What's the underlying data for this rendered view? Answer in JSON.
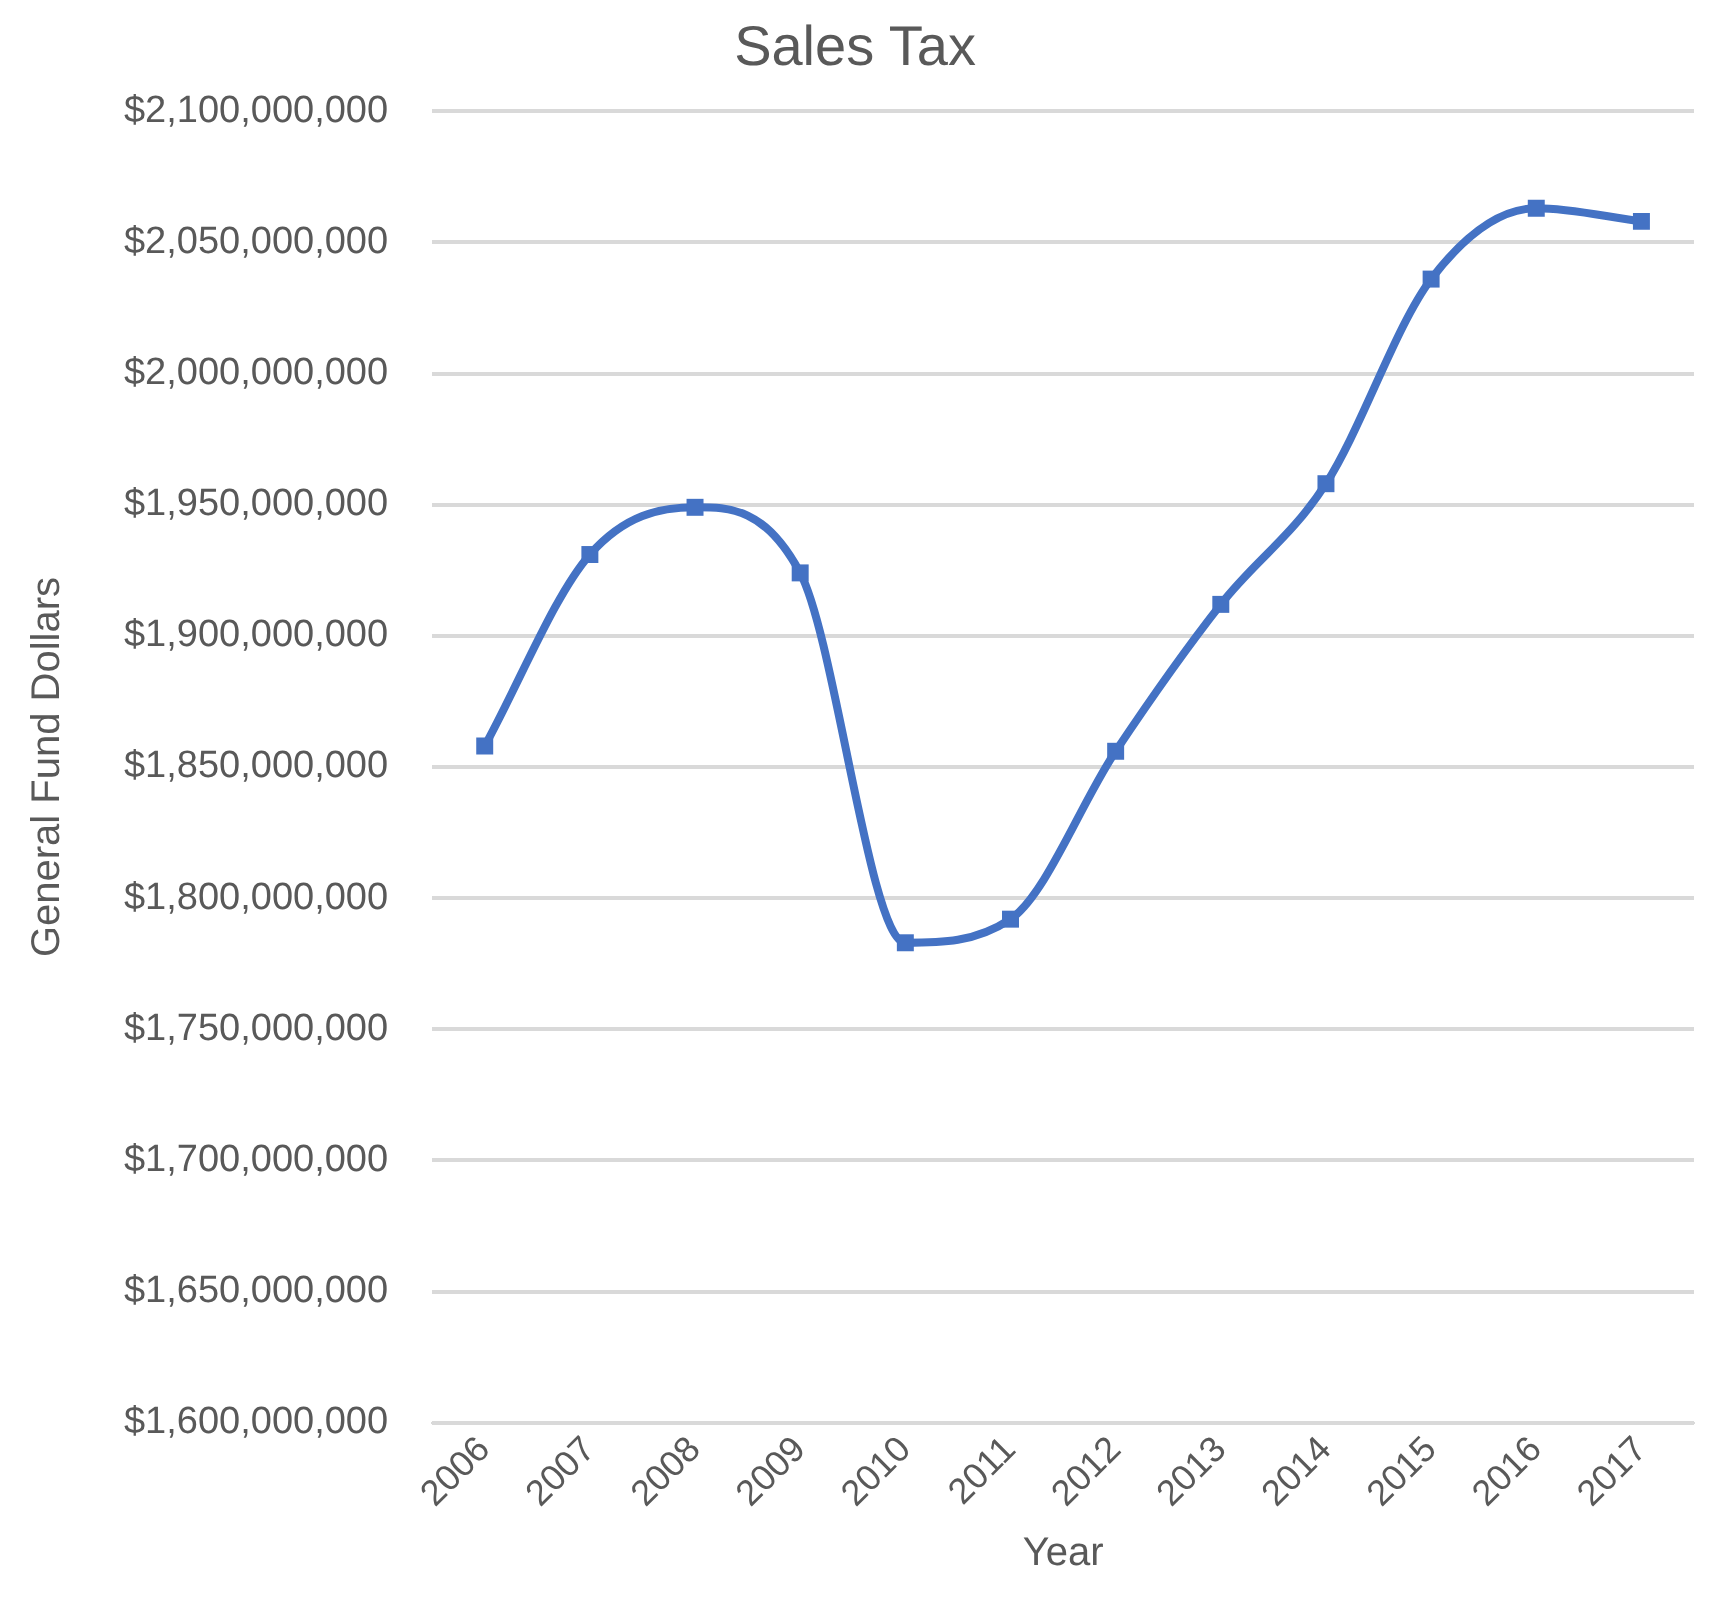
{
  "chart_data": {
    "type": "line",
    "title": "Sales Tax",
    "xlabel": "Year",
    "ylabel": "General Fund Dollars",
    "categories": [
      "2006",
      "2007",
      "2008",
      "2009",
      "2010",
      "2011",
      "2012",
      "2013",
      "2014",
      "2015",
      "2016",
      "2017"
    ],
    "series": [
      {
        "color": "#4472c4",
        "values": [
          1858000000,
          1931000000,
          1949000000,
          1924000000,
          1783000000,
          1792000000,
          1856000000,
          1912000000,
          1958000000,
          2036000000,
          2063000000,
          2058000000
        ]
      }
    ],
    "ylim": [
      1600000000,
      2100000000
    ],
    "yticks": [
      {
        "value": 1600000000,
        "label": "$1,600,000,000"
      },
      {
        "value": 1650000000,
        "label": "$1,650,000,000"
      },
      {
        "value": 1700000000,
        "label": "$1,700,000,000"
      },
      {
        "value": 1750000000,
        "label": "$1,750,000,000"
      },
      {
        "value": 1800000000,
        "label": "$1,800,000,000"
      },
      {
        "value": 1850000000,
        "label": "$1,850,000,000"
      },
      {
        "value": 1900000000,
        "label": "$1,900,000,000"
      },
      {
        "value": 1950000000,
        "label": "$1,950,000,000"
      },
      {
        "value": 2000000000,
        "label": "$2,000,000,000"
      },
      {
        "value": 2050000000,
        "label": "$2,050,000,000"
      },
      {
        "value": 2100000000,
        "label": "$2,100,000,000"
      }
    ],
    "grid": "y",
    "marker": "square",
    "line_style": "solid",
    "legend": false
  }
}
